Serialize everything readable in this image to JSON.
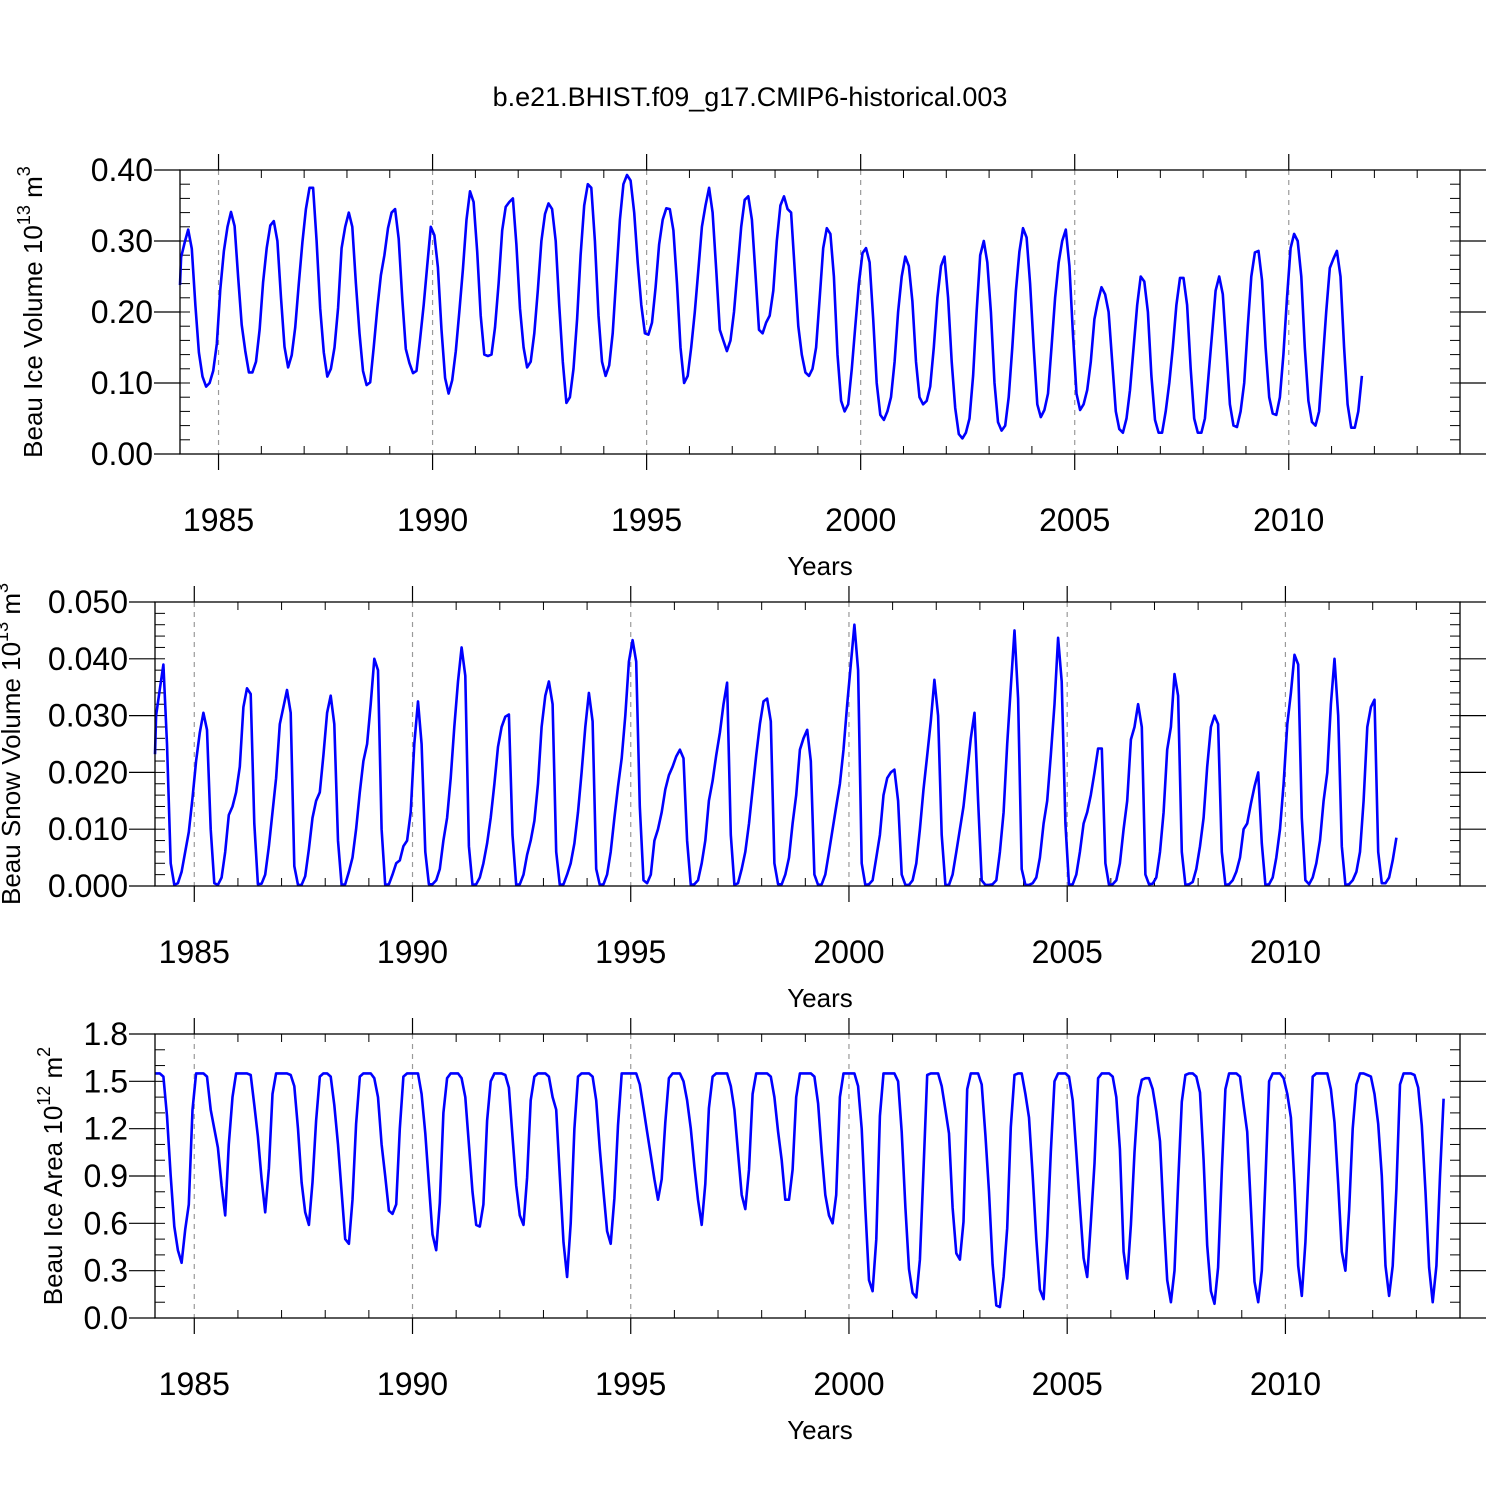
{
  "title": "b.e21.BHIST.f09_g17.CMIP6-historical.003",
  "colors": {
    "series": "#0000ff",
    "axis": "#000000",
    "grid": "#9a9a9a"
  },
  "chart_data": [
    {
      "type": "line",
      "xlabel": "Years",
      "ylabel_main": "Beau Ice Volume 10",
      "ylabel_exp": "13",
      "ylabel_unit": " m",
      "ylabel_unit_exp": "3",
      "xlim": [
        1984.1,
        2014.0
      ],
      "ylim": [
        0.0,
        0.4
      ],
      "xticks": [
        1985,
        1990,
        1995,
        2000,
        2005,
        2010
      ],
      "yticks": [
        "0.00",
        "0.10",
        "0.20",
        "0.30",
        "0.40"
      ],
      "ytick_values": [
        0.0,
        0.1,
        0.2,
        0.3,
        0.4
      ],
      "yminor_step": 0.02,
      "grid": "vertical dashed at major x ticks",
      "series_name": "",
      "x_start": 1984.042,
      "x_step": 0.0833333,
      "values": [
        0.238,
        0.277,
        0.298,
        0.316,
        0.289,
        0.209,
        0.143,
        0.109,
        0.095,
        0.1,
        0.117,
        0.155,
        0.232,
        0.286,
        0.32,
        0.341,
        0.321,
        0.248,
        0.182,
        0.145,
        0.115,
        0.115,
        0.13,
        0.175,
        0.242,
        0.29,
        0.322,
        0.328,
        0.3,
        0.22,
        0.151,
        0.122,
        0.139,
        0.178,
        0.24,
        0.298,
        0.345,
        0.375,
        0.375,
        0.3,
        0.205,
        0.143,
        0.109,
        0.12,
        0.15,
        0.206,
        0.29,
        0.32,
        0.34,
        0.32,
        0.24,
        0.17,
        0.117,
        0.097,
        0.101,
        0.15,
        0.205,
        0.252,
        0.28,
        0.318,
        0.34,
        0.345,
        0.303,
        0.218,
        0.148,
        0.128,
        0.114,
        0.117,
        0.162,
        0.21,
        0.265,
        0.32,
        0.308,
        0.263,
        0.175,
        0.107,
        0.085,
        0.104,
        0.145,
        0.2,
        0.26,
        0.33,
        0.37,
        0.355,
        0.285,
        0.195,
        0.14,
        0.138,
        0.14,
        0.178,
        0.24,
        0.315,
        0.348,
        0.355,
        0.36,
        0.295,
        0.205,
        0.15,
        0.122,
        0.13,
        0.17,
        0.23,
        0.3,
        0.338,
        0.353,
        0.345,
        0.3,
        0.21,
        0.13,
        0.072,
        0.08,
        0.12,
        0.19,
        0.28,
        0.35,
        0.38,
        0.375,
        0.3,
        0.195,
        0.13,
        0.11,
        0.125,
        0.17,
        0.25,
        0.33,
        0.38,
        0.393,
        0.385,
        0.34,
        0.27,
        0.21,
        0.17,
        0.168,
        0.185,
        0.235,
        0.295,
        0.33,
        0.346,
        0.345,
        0.315,
        0.24,
        0.15,
        0.1,
        0.11,
        0.15,
        0.2,
        0.26,
        0.32,
        0.35,
        0.375,
        0.34,
        0.26,
        0.175,
        0.16,
        0.145,
        0.16,
        0.2,
        0.26,
        0.32,
        0.358,
        0.363,
        0.33,
        0.255,
        0.175,
        0.17,
        0.185,
        0.195,
        0.23,
        0.3,
        0.35,
        0.363,
        0.345,
        0.34,
        0.26,
        0.18,
        0.14,
        0.115,
        0.11,
        0.12,
        0.15,
        0.22,
        0.29,
        0.318,
        0.31,
        0.25,
        0.14,
        0.075,
        0.06,
        0.07,
        0.12,
        0.18,
        0.24,
        0.283,
        0.29,
        0.27,
        0.19,
        0.1,
        0.055,
        0.048,
        0.06,
        0.08,
        0.13,
        0.2,
        0.25,
        0.278,
        0.265,
        0.215,
        0.13,
        0.08,
        0.07,
        0.075,
        0.095,
        0.15,
        0.22,
        0.265,
        0.278,
        0.22,
        0.13,
        0.065,
        0.028,
        0.022,
        0.03,
        0.05,
        0.11,
        0.2,
        0.28,
        0.3,
        0.27,
        0.2,
        0.1,
        0.045,
        0.033,
        0.04,
        0.08,
        0.15,
        0.23,
        0.285,
        0.318,
        0.305,
        0.24,
        0.15,
        0.07,
        0.052,
        0.062,
        0.085,
        0.15,
        0.22,
        0.27,
        0.3,
        0.316,
        0.265,
        0.17,
        0.085,
        0.062,
        0.07,
        0.09,
        0.13,
        0.19,
        0.215,
        0.235,
        0.225,
        0.2,
        0.13,
        0.06,
        0.035,
        0.03,
        0.05,
        0.09,
        0.15,
        0.21,
        0.25,
        0.243,
        0.2,
        0.11,
        0.048,
        0.03,
        0.03,
        0.06,
        0.1,
        0.15,
        0.21,
        0.248,
        0.248,
        0.21,
        0.12,
        0.05,
        0.03,
        0.03,
        0.05,
        0.11,
        0.17,
        0.23,
        0.25,
        0.225,
        0.15,
        0.07,
        0.04,
        0.038,
        0.06,
        0.1,
        0.18,
        0.25,
        0.284,
        0.286,
        0.245,
        0.15,
        0.08,
        0.057,
        0.055,
        0.08,
        0.14,
        0.22,
        0.29,
        0.31,
        0.3,
        0.25,
        0.15,
        0.075,
        0.045,
        0.04,
        0.06,
        0.13,
        0.2,
        0.262,
        0.275,
        0.286,
        0.25,
        0.15,
        0.07,
        0.037,
        0.037,
        0.06,
        0.11
      ]
    },
    {
      "type": "line",
      "xlabel": "Years",
      "ylabel_main": "Beau Snow Volume 10",
      "ylabel_exp": "13",
      "ylabel_unit": " m",
      "ylabel_unit_exp": "3",
      "xlim": [
        1984.1,
        2014.0
      ],
      "ylim": [
        0.0,
        0.05
      ],
      "xticks": [
        1985,
        1990,
        1995,
        2000,
        2005,
        2010
      ],
      "yticks": [
        "0.000",
        "0.010",
        "0.020",
        "0.030",
        "0.040",
        "0.050"
      ],
      "ytick_values": [
        0.0,
        0.01,
        0.02,
        0.03,
        0.04,
        0.05
      ],
      "yminor_step": 0.002,
      "grid": "vertical dashed at major x ticks",
      "series_name": "",
      "x_start": 1984.042,
      "x_step": 0.0833333,
      "values": [
        0.0232,
        0.03,
        0.0345,
        0.039,
        0.025,
        0.004,
        0.0002,
        0.0005,
        0.0025,
        0.006,
        0.0095,
        0.0155,
        0.022,
        0.027,
        0.0305,
        0.0275,
        0.01,
        0.0005,
        0.0002,
        0.0015,
        0.006,
        0.0125,
        0.014,
        0.0165,
        0.021,
        0.0315,
        0.0348,
        0.0338,
        0.011,
        0.0003,
        0.0004,
        0.002,
        0.007,
        0.013,
        0.019,
        0.0285,
        0.0315,
        0.0345,
        0.0305,
        0.0035,
        0.0002,
        0.0002,
        0.0017,
        0.0065,
        0.012,
        0.015,
        0.0165,
        0.023,
        0.0305,
        0.0335,
        0.0285,
        0.008,
        0.0002,
        0.0003,
        0.0025,
        0.005,
        0.01,
        0.0165,
        0.022,
        0.025,
        0.032,
        0.04,
        0.038,
        0.01,
        0.0002,
        0.0003,
        0.002,
        0.004,
        0.0045,
        0.007,
        0.008,
        0.013,
        0.025,
        0.0325,
        0.025,
        0.006,
        0.0003,
        0.0003,
        0.001,
        0.003,
        0.008,
        0.012,
        0.019,
        0.028,
        0.036,
        0.042,
        0.037,
        0.007,
        0.0002,
        0.0003,
        0.0015,
        0.004,
        0.0075,
        0.012,
        0.018,
        0.0245,
        0.028,
        0.0298,
        0.0302,
        0.009,
        0.0002,
        0.0003,
        0.002,
        0.0055,
        0.008,
        0.0115,
        0.018,
        0.028,
        0.0335,
        0.036,
        0.032,
        0.006,
        0.0002,
        0.0003,
        0.002,
        0.004,
        0.0075,
        0.013,
        0.02,
        0.028,
        0.034,
        0.029,
        0.003,
        0.0002,
        0.0003,
        0.002,
        0.006,
        0.012,
        0.0175,
        0.0225,
        0.03,
        0.0395,
        0.0433,
        0.0395,
        0.014,
        0.001,
        0.0005,
        0.002,
        0.008,
        0.01,
        0.013,
        0.017,
        0.0195,
        0.021,
        0.0228,
        0.024,
        0.0225,
        0.008,
        0.0002,
        0.0003,
        0.001,
        0.004,
        0.008,
        0.015,
        0.0185,
        0.023,
        0.027,
        0.032,
        0.0358,
        0.009,
        0.0002,
        0.0005,
        0.003,
        0.006,
        0.011,
        0.017,
        0.023,
        0.0285,
        0.0325,
        0.033,
        0.029,
        0.004,
        0.0003,
        0.0003,
        0.002,
        0.005,
        0.011,
        0.016,
        0.024,
        0.026,
        0.0275,
        0.022,
        0.002,
        0.0002,
        0.0003,
        0.002,
        0.006,
        0.01,
        0.014,
        0.018,
        0.024,
        0.032,
        0.039,
        0.046,
        0.038,
        0.004,
        0.0002,
        0.0003,
        0.001,
        0.005,
        0.009,
        0.016,
        0.019,
        0.02,
        0.0205,
        0.015,
        0.002,
        0.0002,
        0.0002,
        0.001,
        0.004,
        0.01,
        0.017,
        0.023,
        0.029,
        0.0363,
        0.03,
        0.009,
        0.0002,
        0.0002,
        0.002,
        0.006,
        0.01,
        0.014,
        0.02,
        0.026,
        0.0305,
        0.015,
        0.001,
        0.0002,
        0.0002,
        0.0003,
        0.001,
        0.006,
        0.013,
        0.025,
        0.035,
        0.045,
        0.033,
        0.003,
        0.0002,
        0.0002,
        0.0005,
        0.0015,
        0.005,
        0.011,
        0.015,
        0.023,
        0.032,
        0.0437,
        0.036,
        0.011,
        0.0002,
        0.0003,
        0.002,
        0.006,
        0.011,
        0.013,
        0.016,
        0.02,
        0.0242,
        0.0242,
        0.004,
        0.0002,
        0.0003,
        0.001,
        0.004,
        0.01,
        0.015,
        0.0258,
        0.028,
        0.032,
        0.028,
        0.002,
        0.0003,
        0.0004,
        0.0015,
        0.006,
        0.013,
        0.024,
        0.028,
        0.0373,
        0.0335,
        0.006,
        0.0002,
        0.0003,
        0.0007,
        0.003,
        0.007,
        0.012,
        0.021,
        0.028,
        0.03,
        0.0285,
        0.006,
        0.0002,
        0.0003,
        0.001,
        0.0025,
        0.005,
        0.01,
        0.011,
        0.0145,
        0.0175,
        0.02,
        0.0075,
        0.0002,
        0.0003,
        0.0015,
        0.005,
        0.01,
        0.018,
        0.0285,
        0.034,
        0.0407,
        0.039,
        0.012,
        0.001,
        0.0003,
        0.0015,
        0.004,
        0.008,
        0.015,
        0.02,
        0.032,
        0.04,
        0.03,
        0.007,
        0.0002,
        0.0003,
        0.001,
        0.0025,
        0.006,
        0.015,
        0.028,
        0.0315,
        0.0328,
        0.006,
        0.0005,
        0.0005,
        0.0015,
        0.0045,
        0.0085
      ]
    },
    {
      "type": "line",
      "xlabel": "Years",
      "ylabel_main": "Beau Ice Area 10",
      "ylabel_exp": "12",
      "ylabel_unit": " m",
      "ylabel_unit_exp": "2",
      "xlim": [
        1984.1,
        2014.0
      ],
      "ylim": [
        0.0,
        1.8
      ],
      "xticks": [
        1985,
        1990,
        1995,
        2000,
        2005,
        2010
      ],
      "yticks": [
        "0.0",
        "0.3",
        "0.6",
        "0.9",
        "1.2",
        "1.5",
        "1.8"
      ],
      "ytick_values": [
        0.0,
        0.3,
        0.6,
        0.9,
        1.2,
        1.5,
        1.8
      ],
      "yminor_step": 0.1,
      "grid": "vertical dashed at major x ticks",
      "series_name": "",
      "x_start": 1984.042,
      "x_step": 0.0833333,
      "values": [
        1.55,
        1.55,
        1.55,
        1.53,
        1.28,
        0.9,
        0.58,
        0.43,
        0.35,
        0.56,
        0.72,
        1.32,
        1.55,
        1.55,
        1.55,
        1.53,
        1.32,
        1.2,
        1.08,
        0.84,
        0.65,
        1.1,
        1.4,
        1.55,
        1.55,
        1.55,
        1.55,
        1.54,
        1.35,
        1.15,
        0.88,
        0.67,
        0.95,
        1.42,
        1.55,
        1.55,
        1.55,
        1.55,
        1.54,
        1.47,
        1.2,
        0.86,
        0.67,
        0.59,
        0.86,
        1.25,
        1.53,
        1.55,
        1.55,
        1.53,
        1.35,
        1.1,
        0.8,
        0.5,
        0.47,
        0.75,
        1.23,
        1.53,
        1.55,
        1.55,
        1.55,
        1.52,
        1.4,
        1.1,
        0.9,
        0.68,
        0.66,
        0.72,
        1.2,
        1.53,
        1.55,
        1.55,
        1.55,
        1.55,
        1.42,
        1.17,
        0.85,
        0.53,
        0.43,
        0.73,
        1.3,
        1.52,
        1.55,
        1.55,
        1.55,
        1.52,
        1.4,
        1.1,
        0.8,
        0.59,
        0.58,
        0.72,
        1.25,
        1.5,
        1.55,
        1.55,
        1.55,
        1.54,
        1.46,
        1.15,
        0.84,
        0.65,
        0.59,
        0.89,
        1.38,
        1.53,
        1.55,
        1.55,
        1.55,
        1.53,
        1.4,
        1.32,
        0.9,
        0.48,
        0.26,
        0.6,
        1.2,
        1.53,
        1.55,
        1.55,
        1.55,
        1.53,
        1.38,
        1.07,
        0.8,
        0.55,
        0.47,
        0.76,
        1.22,
        1.55,
        1.55,
        1.55,
        1.55,
        1.55,
        1.48,
        1.33,
        1.18,
        1.03,
        0.88,
        0.75,
        0.88,
        1.24,
        1.52,
        1.55,
        1.55,
        1.55,
        1.5,
        1.38,
        1.2,
        0.96,
        0.75,
        0.59,
        0.85,
        1.33,
        1.53,
        1.55,
        1.55,
        1.55,
        1.55,
        1.47,
        1.32,
        1.05,
        0.78,
        0.69,
        0.94,
        1.42,
        1.55,
        1.55,
        1.55,
        1.55,
        1.53,
        1.4,
        1.18,
        1.0,
        0.75,
        0.75,
        0.94,
        1.4,
        1.55,
        1.55,
        1.55,
        1.55,
        1.53,
        1.36,
        1.05,
        0.78,
        0.65,
        0.6,
        0.78,
        1.4,
        1.55,
        1.55,
        1.55,
        1.55,
        1.47,
        1.2,
        0.7,
        0.24,
        0.17,
        0.5,
        1.28,
        1.55,
        1.55,
        1.55,
        1.55,
        1.5,
        1.18,
        0.7,
        0.31,
        0.16,
        0.13,
        0.37,
        0.94,
        1.54,
        1.55,
        1.55,
        1.55,
        1.47,
        1.32,
        1.17,
        0.7,
        0.41,
        0.37,
        0.61,
        1.45,
        1.55,
        1.55,
        1.55,
        1.48,
        1.16,
        0.8,
        0.34,
        0.08,
        0.07,
        0.26,
        0.57,
        1.21,
        1.54,
        1.55,
        1.55,
        1.42,
        1.27,
        0.9,
        0.5,
        0.18,
        0.12,
        0.52,
        1.05,
        1.5,
        1.55,
        1.55,
        1.55,
        1.53,
        1.38,
        1.05,
        0.71,
        0.38,
        0.26,
        0.6,
        0.98,
        1.52,
        1.55,
        1.55,
        1.55,
        1.53,
        1.4,
        1.07,
        0.42,
        0.25,
        0.59,
        1.05,
        1.4,
        1.51,
        1.52,
        1.52,
        1.45,
        1.31,
        1.12,
        0.65,
        0.24,
        0.1,
        0.3,
        0.85,
        1.37,
        1.54,
        1.55,
        1.55,
        1.53,
        1.43,
        1.0,
        0.46,
        0.17,
        0.09,
        0.32,
        0.93,
        1.45,
        1.55,
        1.55,
        1.55,
        1.53,
        1.35,
        1.18,
        0.7,
        0.23,
        0.1,
        0.3,
        0.87,
        1.5,
        1.55,
        1.55,
        1.55,
        1.52,
        1.42,
        1.27,
        0.85,
        0.33,
        0.14,
        0.48,
        1.0,
        1.53,
        1.55,
        1.55,
        1.55,
        1.55,
        1.45,
        1.24,
        0.85,
        0.42,
        0.3,
        0.68,
        1.2,
        1.48,
        1.55,
        1.55,
        1.54,
        1.53,
        1.42,
        1.23,
        0.9,
        0.33,
        0.14,
        0.33,
        0.82,
        1.48,
        1.55,
        1.55,
        1.55,
        1.54,
        1.46,
        1.22,
        0.8,
        0.32,
        0.1,
        0.33,
        0.9,
        1.39
      ]
    }
  ]
}
